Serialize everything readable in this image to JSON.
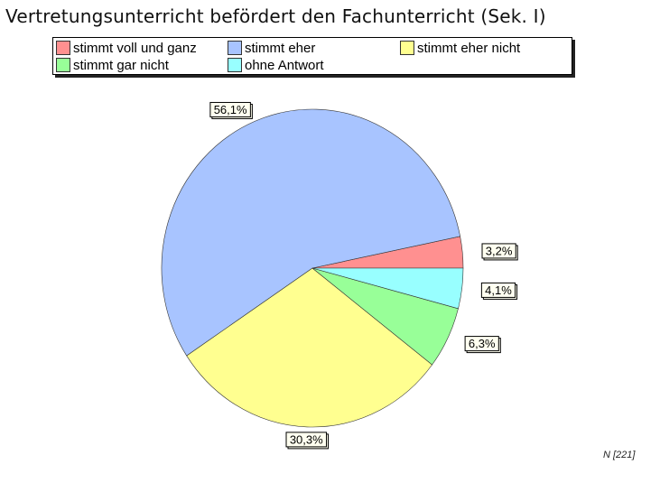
{
  "title": "Vertretungsunterricht befördert den Fachunterricht (Sek. I)",
  "footer_n": "N [221]",
  "chart_data": {
    "type": "pie",
    "title": "Vertretungsunterricht befördert den Fachunterricht (Sek. I)",
    "categories": [
      "stimmt voll und ganz",
      "stimmt eher",
      "stimmt eher nicht",
      "stimmt gar nicht",
      "ohne Antwort"
    ],
    "values": [
      3.2,
      56.1,
      30.3,
      6.3,
      4.1
    ],
    "labels": [
      "3,2%",
      "56,1%",
      "30,3%",
      "6,3%",
      "4,1%"
    ],
    "colors": [
      "#ff9090",
      "#a8c4ff",
      "#ffff90",
      "#98ff98",
      "#98ffff"
    ],
    "legend": "top"
  }
}
